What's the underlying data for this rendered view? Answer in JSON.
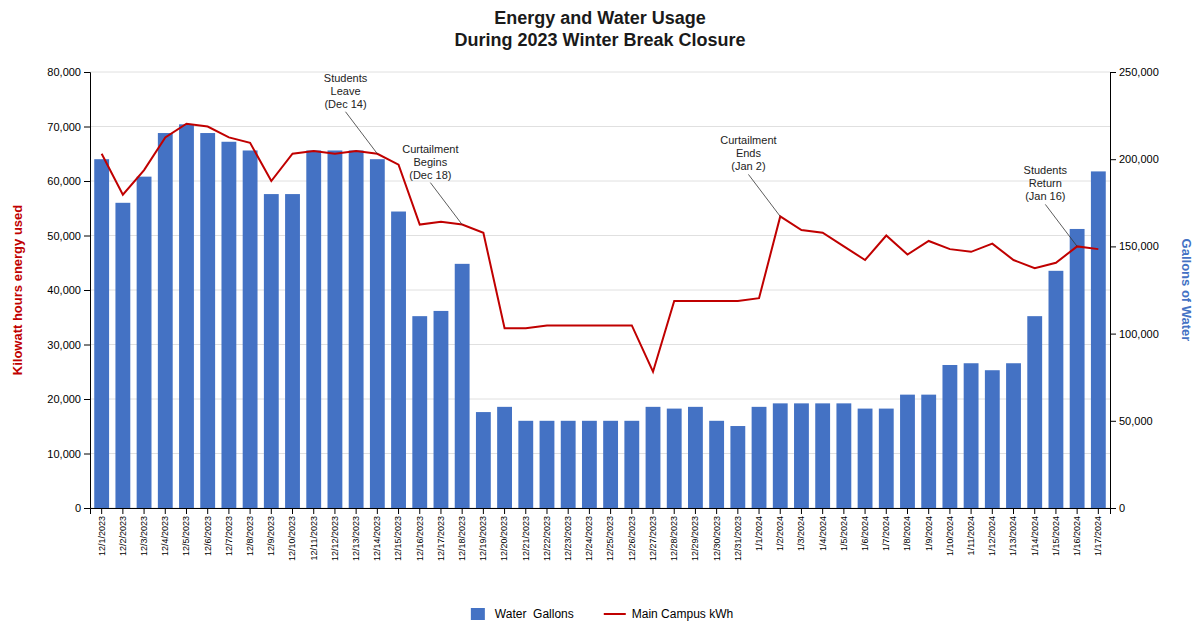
{
  "chart_data": {
    "type": "bar",
    "title": "Energy and Water Usage\nDuring 2023 Winter Break Closure",
    "y_label": "Kilowatt hours energy used",
    "y2_label": "Gallons of Water",
    "categories": [
      "12/1/2023",
      "12/2/2023",
      "12/3/2023",
      "12/4/2023",
      "12/5/2023",
      "12/6/2023",
      "12/7/2023",
      "12/8/2023",
      "12/9/2023",
      "12/10/2023",
      "12/11/2023",
      "12/12/2023",
      "12/13/2023",
      "12/14/2023",
      "12/15/2023",
      "12/16/2023",
      "12/17/2023",
      "12/18/2023",
      "12/19/2023",
      "12/20/2023",
      "12/21/2023",
      "12/22/2023",
      "12/23/2023",
      "12/24/2023",
      "12/25/2023",
      "12/26/2023",
      "12/27/2023",
      "12/28/2023",
      "12/29/2023",
      "12/30/2023",
      "12/31/2023",
      "1/1/2024",
      "1/2/2024",
      "1/3/2024",
      "1/4/2024",
      "1/5/2024",
      "1/6/2024",
      "1/7/2024",
      "1/8/2024",
      "1/9/2024",
      "1/10/2024",
      "1/11/2024",
      "1/12/2024",
      "1/13/2024",
      "1/14/2024",
      "1/15/2024",
      "1/16/2024",
      "1/17/2024"
    ],
    "series": [
      {
        "name": "Water  Gallons",
        "type": "bar",
        "axis": "y2",
        "color": "#4472C4",
        "values": [
          200000,
          175000,
          190000,
          215000,
          220000,
          215000,
          210000,
          205000,
          180000,
          180000,
          205000,
          205000,
          205000,
          200000,
          170000,
          110000,
          113000,
          140000,
          55000,
          58000,
          50000,
          50000,
          50000,
          50000,
          50000,
          50000,
          58000,
          57000,
          58000,
          50000,
          47000,
          58000,
          60000,
          60000,
          60000,
          60000,
          57000,
          57000,
          65000,
          65000,
          82000,
          83000,
          79000,
          83000,
          110000,
          136000,
          160000,
          193000
        ]
      },
      {
        "name": "Main Campus kWh",
        "type": "line",
        "color": "#C00000",
        "values": [
          65000,
          57500,
          62000,
          68000,
          70500,
          70000,
          68000,
          67000,
          60000,
          65000,
          65500,
          65000,
          65500,
          65000,
          63000,
          52000,
          52500,
          52000,
          50500,
          33000,
          33000,
          33500,
          33500,
          33500,
          33500,
          33500,
          25000,
          38000,
          38000,
          38000,
          38000,
          38500,
          53500,
          51000,
          50500,
          48000,
          45500,
          50000,
          46500,
          49000,
          47500,
          47000,
          48500,
          45500,
          44000,
          45000,
          48000,
          47500
        ]
      }
    ],
    "ylim": [
      0,
      80000
    ],
    "yticks": [
      0,
      {
        "value": 10000,
        "label": "10,000"
      },
      {
        "value": 20000,
        "label": "20,000"
      },
      {
        "value": 30000,
        "label": "30,000"
      },
      {
        "value": 40000,
        "label": "40,000"
      },
      {
        "value": 50000,
        "label": "50,000"
      },
      {
        "value": 60000,
        "label": "60,000"
      },
      {
        "value": 70000,
        "label": "70,000"
      },
      {
        "value": 80000,
        "label": "80,000"
      }
    ],
    "y2lim": [
      0,
      250000
    ],
    "y2ticks": [
      0,
      {
        "value": 50000,
        "label": "50,000"
      },
      {
        "value": 100000,
        "label": "100,000"
      },
      {
        "value": 150000,
        "label": "150,000"
      },
      {
        "value": 200000,
        "label": "200,000"
      },
      {
        "value": 250000,
        "label": "250,000"
      }
    ],
    "grid": true,
    "legend": "bottom",
    "annotations": [
      {
        "text": "Students\nLeave\n(Dec 14)",
        "x": "12/14/2023",
        "y": 65000
      },
      {
        "text": "Curtailment\nBegins\n(Dec 18)",
        "x": "12/18/2023",
        "y": 52000
      },
      {
        "text": "Curtailment\nEnds\n(Jan 2)",
        "x": "1/2/2024",
        "y": 53500
      },
      {
        "text": "Students\nReturn\n(Jan 16)",
        "x": "1/16/2024",
        "y": 48000
      }
    ]
  }
}
